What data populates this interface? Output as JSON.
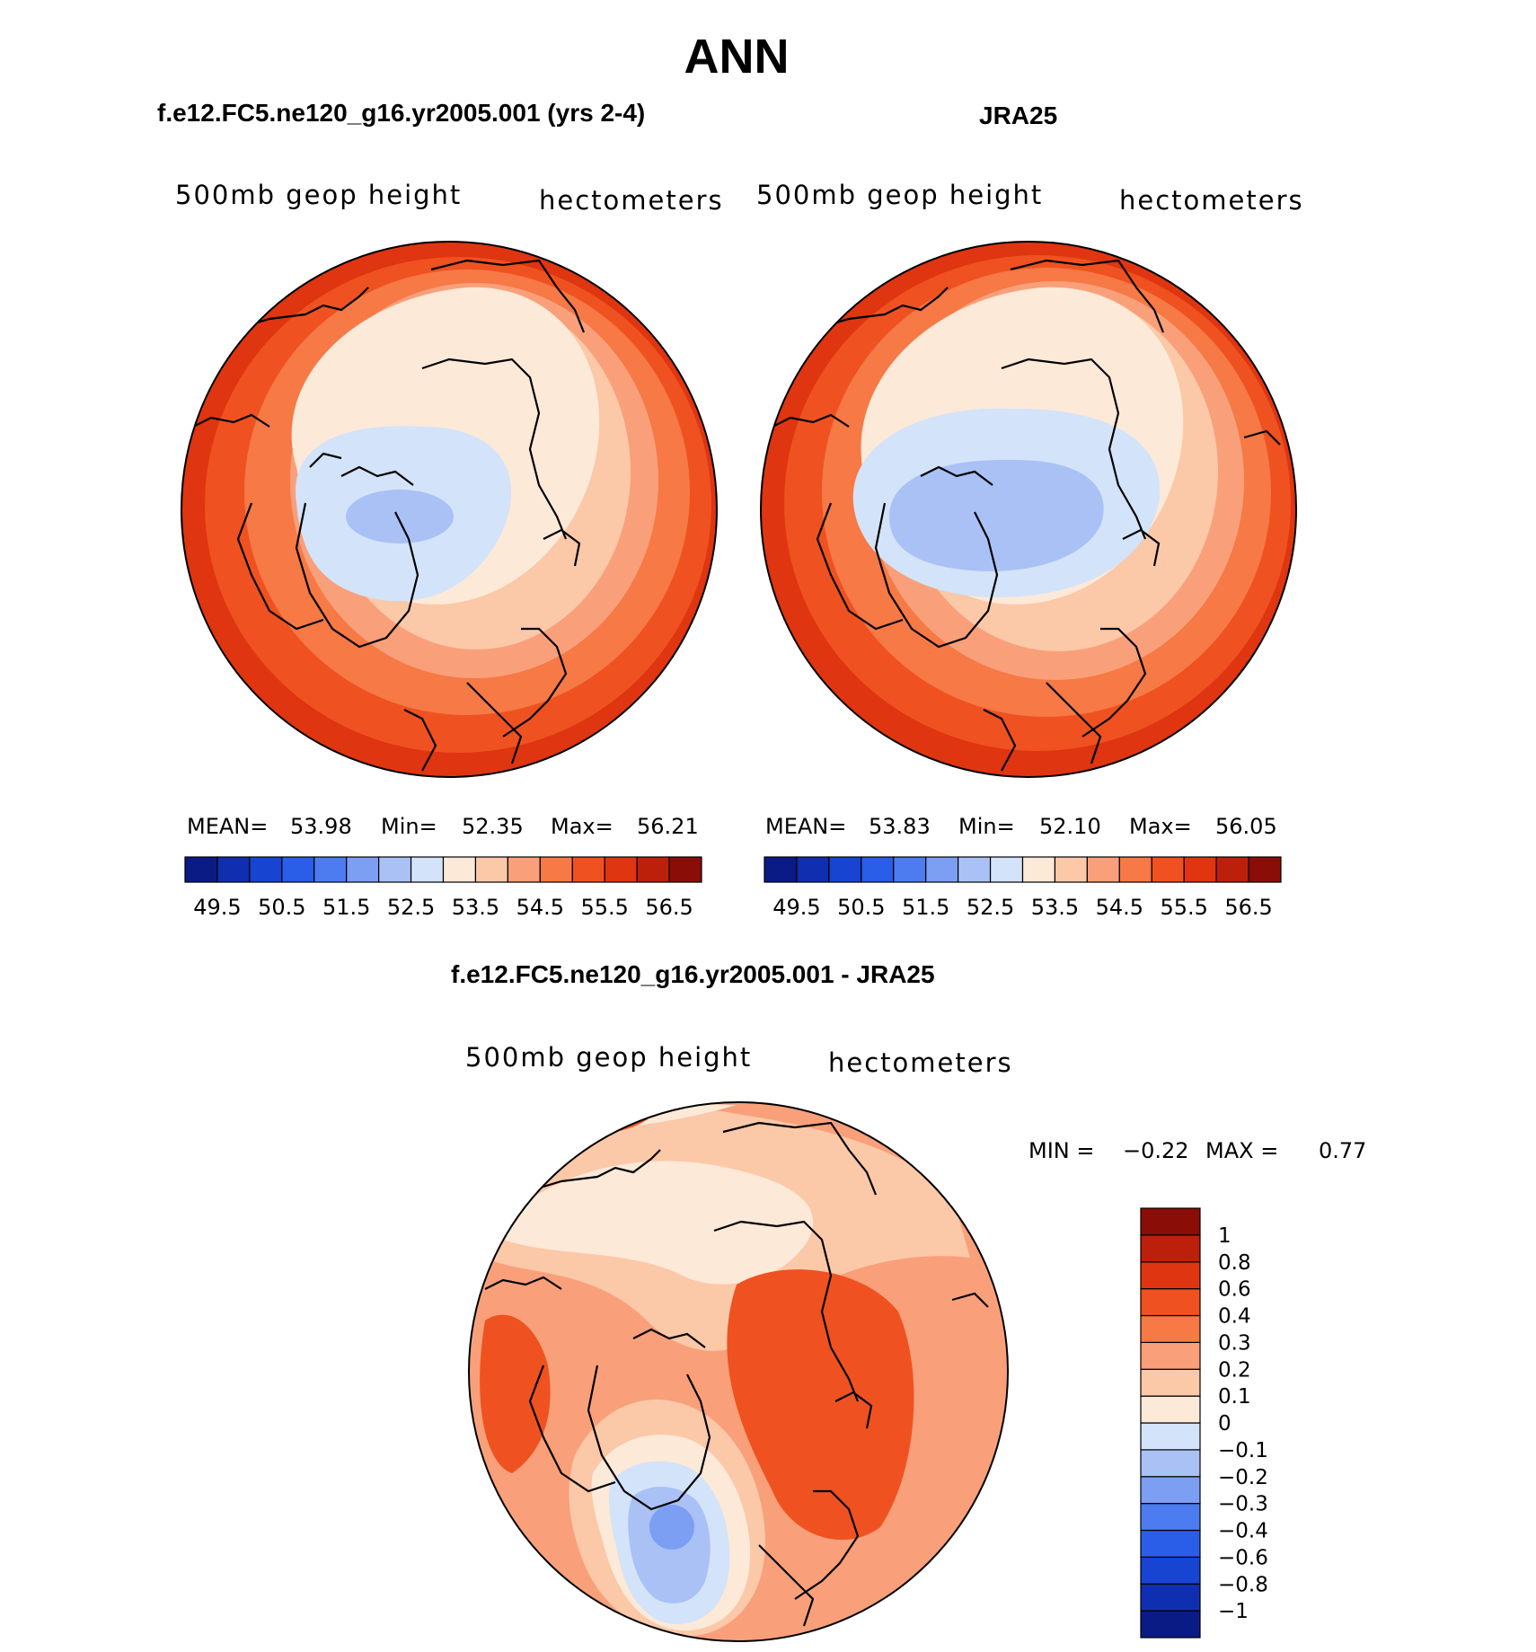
{
  "main_title": "ANN",
  "panel_left": {
    "title": "f.e12.FC5.ne120_g16.yr2005.001 (yrs 2-4)",
    "left_label": "500mb geop height",
    "right_label": "hectometers",
    "mean_label": "MEAN=",
    "mean": "53.98",
    "min_label": "Min=",
    "min": "52.35",
    "max_label": "Max=",
    "max": "56.21"
  },
  "panel_right": {
    "title": "JRA25",
    "left_label": "500mb geop height",
    "right_label": "hectometers",
    "mean_label": "MEAN=",
    "mean": "53.83",
    "min_label": "Min=",
    "min": "52.10",
    "max_label": "Max=",
    "max": "56.05"
  },
  "panel_diff": {
    "title": "f.e12.FC5.ne120_g16.yr2005.001 - JRA25",
    "left_label": "500mb geop height",
    "right_label": "hectometers",
    "min_label": "MIN =",
    "min": "−0.22",
    "max_label": "MAX =",
    "max": "0.77"
  },
  "colorbar_top": {
    "colors": [
      "#0a1b85",
      "#0f2fb0",
      "#1745d1",
      "#2a5de8",
      "#4d7cf0",
      "#7c9ff3",
      "#a9c1f5",
      "#d3e3f9",
      "#fde9d8",
      "#fbc8a8",
      "#f9a07a",
      "#f67946",
      "#ef5220",
      "#df3510",
      "#bd200a",
      "#8a0e07"
    ],
    "tick_labels": [
      "49.5",
      "50.5",
      "51.5",
      "52.5",
      "53.5",
      "54.5",
      "55.5",
      "56.5"
    ]
  },
  "colorbar_diff": {
    "colors": [
      "#0a1b85",
      "#0f2fb0",
      "#1745d1",
      "#2a5de8",
      "#4d7cf0",
      "#7c9ff3",
      "#a9c1f5",
      "#d3e3f9",
      "#fde9d8",
      "#fbc8a8",
      "#f9a07a",
      "#f67946",
      "#ef5220",
      "#df3510",
      "#bd200a",
      "#8a0e07"
    ],
    "tick_labels": [
      "−1",
      "−0.8",
      "−0.6",
      "−0.4",
      "−0.3",
      "−0.2",
      "−0.1",
      "0",
      "0.1",
      "0.2",
      "0.3",
      "0.4",
      "0.6",
      "0.8",
      "1"
    ]
  }
}
